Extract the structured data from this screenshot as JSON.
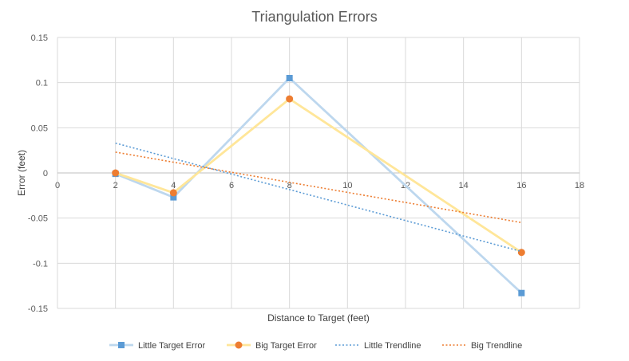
{
  "chart_data": {
    "type": "line",
    "title": "Triangulation Errors",
    "xlabel": "Distance to Target (feet)",
    "ylabel": "Error (feet)",
    "xlim": [
      0,
      18
    ],
    "ylim": [
      -0.15,
      0.15
    ],
    "x_ticks": [
      "0",
      "2",
      "4",
      "6",
      "8",
      "10",
      "12",
      "14",
      "16",
      "18"
    ],
    "y_ticks": [
      "0.15",
      "0.1",
      "0.05",
      "0",
      "-0.05",
      "-0.1",
      "-0.15"
    ],
    "x_tick_values": [
      0,
      2,
      4,
      6,
      8,
      10,
      12,
      14,
      16,
      18
    ],
    "y_tick_values": [
      0.15,
      0.1,
      0.05,
      0,
      -0.05,
      -0.1,
      -0.15
    ],
    "grid": true,
    "legend_position": "bottom",
    "series": [
      {
        "name": "Little Target Error",
        "x": [
          2,
          4,
          8,
          16
        ],
        "y": [
          -0.001,
          -0.027,
          0.105,
          -0.133
        ],
        "line_color": "#bdd7ee",
        "marker": "square",
        "marker_color": "#5b9bd5"
      },
      {
        "name": "Big Target Error",
        "x": [
          2,
          4,
          8,
          16
        ],
        "y": [
          0.0,
          -0.022,
          0.082,
          -0.088
        ],
        "line_color": "#ffe699",
        "marker": "circle",
        "marker_color": "#ed7d31"
      },
      {
        "name": "Little Trendline",
        "x": [
          2,
          16
        ],
        "y": [
          0.033,
          -0.087
        ],
        "line_color": "#5b9bd5",
        "style": "dotted"
      },
      {
        "name": "Big Trendline",
        "x": [
          2,
          16
        ],
        "y": [
          0.023,
          -0.055
        ],
        "line_color": "#ed7d31",
        "style": "dotted"
      }
    ]
  }
}
